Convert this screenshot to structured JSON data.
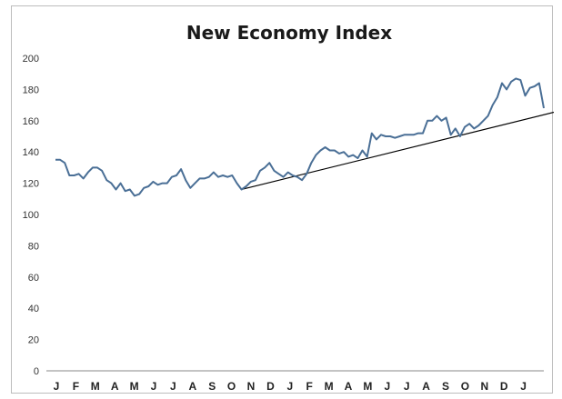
{
  "chart_data": {
    "type": "line",
    "title": "New Economy Index",
    "xlabel": "",
    "ylabel": "",
    "ylim": [
      0,
      200
    ],
    "yticks": [
      0,
      20,
      40,
      60,
      80,
      100,
      120,
      140,
      160,
      180,
      200
    ],
    "grid": false,
    "legend": "none",
    "x_tick_labels": [
      "J",
      "F",
      "M",
      "A",
      "M",
      "J",
      "J",
      "A",
      "S",
      "O",
      "N",
      "D",
      "J",
      "F",
      "M",
      "A",
      "M",
      "J",
      "J",
      "A",
      "S",
      "O",
      "N",
      "D",
      "J"
    ],
    "series": [
      {
        "color": "#4a6f96",
        "values": [
          135,
          135,
          133,
          125,
          125,
          126,
          123,
          127,
          130,
          130,
          128,
          122,
          120,
          116,
          120,
          115,
          116,
          112,
          113,
          117,
          118,
          121,
          119,
          120,
          120,
          124,
          125,
          129,
          122,
          117,
          120,
          123,
          123,
          124,
          127,
          124,
          125,
          124,
          125,
          120,
          116,
          118,
          121,
          122,
          128,
          130,
          133,
          128,
          126,
          124,
          127,
          125,
          124,
          122,
          126,
          133,
          138,
          141,
          143,
          141,
          141,
          139,
          140,
          137,
          138,
          136,
          141,
          137,
          152,
          148,
          151,
          150,
          150,
          149,
          150,
          151,
          151,
          151,
          152,
          152,
          160,
          160,
          163,
          160,
          162,
          151,
          155,
          150,
          156,
          158,
          155,
          157,
          160,
          163,
          170,
          175,
          184,
          180,
          185,
          187,
          186,
          176,
          181,
          182,
          184,
          168
        ]
      },
      {
        "name": "",
        "type": "trendline",
        "color": "#000000",
        "points": [
          [
            40,
            116
          ],
          [
            108,
            166
          ]
        ]
      }
    ]
  }
}
